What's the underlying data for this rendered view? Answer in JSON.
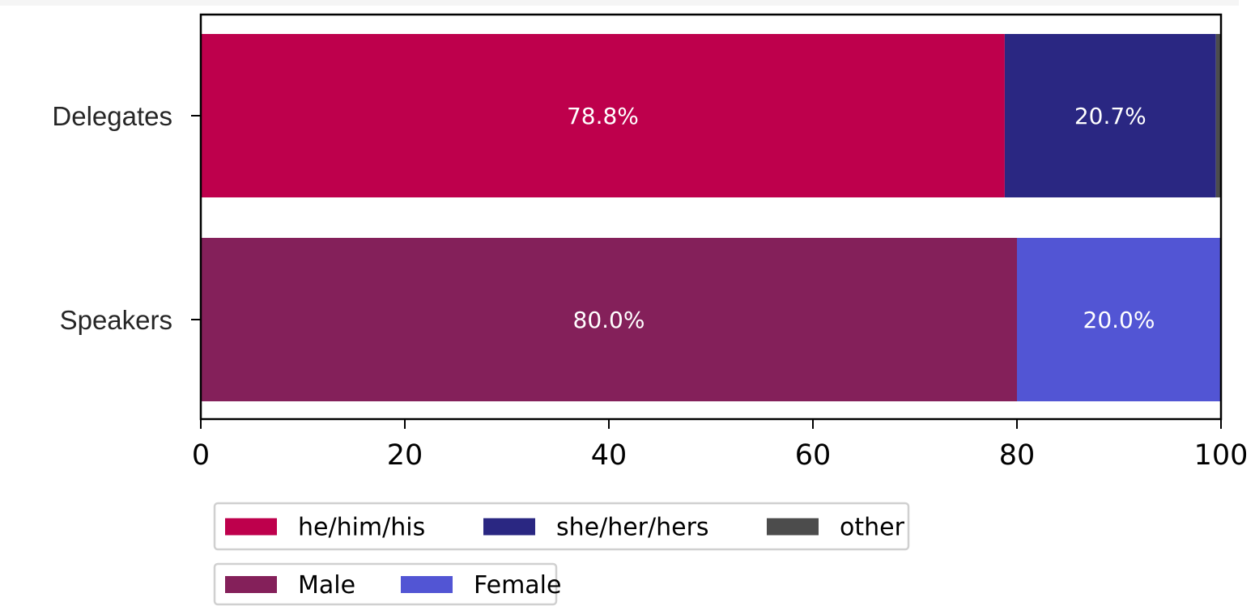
{
  "chart_data": {
    "type": "bar",
    "orientation": "horizontal",
    "stacked": true,
    "categories": [
      "Delegates",
      "Speakers"
    ],
    "series": [
      {
        "name": "he/him/his",
        "values": [
          78.8,
          0
        ],
        "color": "#be004c",
        "labels": [
          "78.8%",
          ""
        ]
      },
      {
        "name": "she/her/hers",
        "values": [
          20.7,
          0
        ],
        "color": "#2a2782",
        "labels": [
          "20.7%",
          ""
        ]
      },
      {
        "name": "other",
        "values": [
          0.5,
          0
        ],
        "color": "#4c4c4c",
        "labels": [
          "",
          ""
        ]
      },
      {
        "name": "Male",
        "values": [
          0,
          80.0
        ],
        "color": "#84205a",
        "labels": [
          "",
          "80.0%"
        ]
      },
      {
        "name": "Female",
        "values": [
          0,
          20.0
        ],
        "color": "#5255d4",
        "labels": [
          "",
          "20.0%"
        ]
      }
    ],
    "xlim": [
      0,
      100
    ],
    "xticks": [
      "0",
      "20",
      "40",
      "60",
      "80",
      "100"
    ],
    "grid": false,
    "legends": [
      {
        "placement": "bottom-left",
        "entries": [
          "he/him/his",
          "she/her/hers",
          "other"
        ]
      },
      {
        "placement": "bottom-left",
        "entries": [
          "Male",
          "Female"
        ]
      }
    ]
  }
}
